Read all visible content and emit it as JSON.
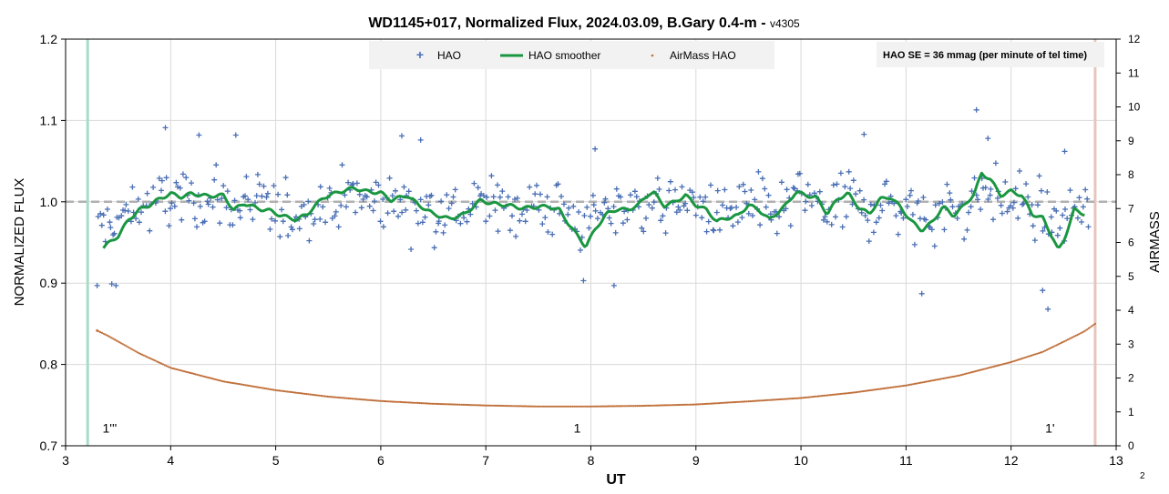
{
  "chart_data": {
    "type": "scatter",
    "title": "WD1145+017, Normalized Flux, 2024.03.09, B.Gary 0.4-m - ",
    "title_version": "v4305",
    "xlabel": "UT",
    "ylabel": "NORMALIZED FLUX",
    "y2label": "AIRMASS",
    "xlim": [
      3,
      13
    ],
    "ylim": [
      0.7,
      1.2
    ],
    "y2lim": [
      0,
      12
    ],
    "x_ticks": [
      3,
      4,
      5,
      6,
      7,
      8,
      9,
      10,
      11,
      12,
      13
    ],
    "y_ticks": [
      0.7,
      0.8,
      0.9,
      1.0,
      1.1,
      1.2
    ],
    "y_tick_labels": [
      "0.7",
      "0.8",
      "0.9",
      "1.0",
      "1.1",
      "1.2"
    ],
    "y2_ticks": [
      0,
      1,
      2,
      3,
      4,
      5,
      6,
      7,
      8,
      9,
      10,
      11,
      12
    ],
    "grid": true,
    "reference_line": {
      "y": 1.0,
      "style": "dashed",
      "color": "#b0b0b0"
    },
    "vertical_markers": [
      {
        "x": 3.21,
        "color": "#a8dcc8"
      },
      {
        "x": 12.8,
        "color": "#e8c4bc"
      }
    ],
    "annotations": [
      {
        "text": "1'''",
        "x": 3.42,
        "y": 0.712
      },
      {
        "text": "1",
        "x": 7.87,
        "y": 0.712
      },
      {
        "text": "1'",
        "x": 12.37,
        "y": 0.712
      }
    ],
    "note": "HAO SE = 36 mmag (per minute of tel time)",
    "corner_label": "2",
    "legend_position": "top-center",
    "series": [
      {
        "name": "HAO",
        "marker": "+",
        "color": "#4a6fb5",
        "x_range": [
          3.3,
          12.75
        ],
        "n_points": 520,
        "center": 0.995,
        "scatter_sd": 0.032,
        "outliers": [
          [
            3.3,
            0.897
          ],
          [
            3.44,
            0.899
          ],
          [
            3.48,
            0.897
          ],
          [
            3.95,
            1.091
          ],
          [
            4.27,
            1.082
          ],
          [
            4.62,
            1.082
          ],
          [
            6.2,
            1.081
          ],
          [
            6.38,
            1.076
          ],
          [
            8.04,
            1.065
          ],
          [
            7.93,
            0.903
          ],
          [
            8.22,
            0.897
          ],
          [
            10.6,
            1.083
          ],
          [
            11.15,
            0.887
          ],
          [
            11.67,
            1.113
          ],
          [
            12.3,
            0.891
          ],
          [
            12.35,
            0.868
          ],
          [
            11.78,
            1.078
          ],
          [
            12.51,
            1.062
          ]
        ]
      },
      {
        "name": "HAO smoother",
        "line": true,
        "color": "#1a9641",
        "x": [
          3.36,
          3.5,
          3.6,
          3.7,
          3.8,
          3.9,
          4.0,
          4.1,
          4.2,
          4.35,
          4.5,
          4.6,
          4.7,
          4.85,
          4.95,
          5.05,
          5.2,
          5.3,
          5.45,
          5.6,
          5.75,
          5.85,
          6.0,
          6.1,
          6.25,
          6.35,
          6.5,
          6.65,
          6.8,
          6.95,
          7.05,
          7.2,
          7.35,
          7.5,
          7.6,
          7.7,
          7.75,
          7.85,
          7.95,
          8.05,
          8.15,
          8.25,
          8.35,
          8.45,
          8.55,
          8.6,
          8.7,
          8.8,
          8.9,
          9.0,
          9.1,
          9.2,
          9.3,
          9.4,
          9.5,
          9.6,
          9.7,
          9.85,
          9.95,
          10.05,
          10.15,
          10.25,
          10.35,
          10.45,
          10.55,
          10.65,
          10.75,
          10.85,
          10.95,
          11.05,
          11.15,
          11.25,
          11.35,
          11.45,
          11.55,
          11.65,
          11.72,
          11.8,
          11.9,
          12.0,
          12.1,
          12.2,
          12.3,
          12.4,
          12.45,
          12.5,
          12.6,
          12.7
        ],
        "y": [
          0.944,
          0.958,
          0.978,
          0.99,
          0.996,
          1.004,
          1.01,
          1.006,
          1.01,
          1.007,
          1.008,
          0.99,
          0.998,
          0.991,
          0.989,
          0.983,
          0.978,
          0.985,
          1.005,
          1.012,
          1.017,
          1.013,
          1.011,
          1.002,
          1.008,
          0.997,
          0.985,
          0.979,
          0.985,
          1.002,
          0.998,
          0.996,
          0.992,
          0.994,
          0.994,
          0.99,
          0.98,
          0.962,
          0.945,
          0.968,
          0.985,
          0.991,
          0.99,
          0.996,
          1.01,
          1.011,
          0.995,
          1.0,
          1.008,
          0.996,
          0.99,
          0.976,
          0.98,
          0.983,
          0.996,
          0.99,
          0.978,
          0.995,
          1.012,
          1.008,
          1.005,
          0.985,
          1.004,
          1.01,
          0.993,
          0.985,
          1.003,
          1.006,
          0.993,
          0.976,
          0.965,
          0.975,
          0.994,
          0.983,
          0.995,
          1.01,
          1.035,
          1.028,
          1.008,
          1.013,
          1.008,
          0.985,
          0.98,
          0.955,
          0.94,
          0.952,
          0.99,
          0.985
        ]
      },
      {
        "name": "AirMass HAO",
        "marker": "dot",
        "color": "#c0703a",
        "axis": "right",
        "x_range": [
          3.3,
          12.8
        ],
        "x": [
          3.3,
          3.4,
          3.7,
          4.0,
          4.5,
          5.0,
          5.5,
          6.0,
          6.5,
          7.0,
          7.5,
          8.0,
          8.5,
          9.0,
          9.5,
          10.0,
          10.5,
          11.0,
          11.5,
          12.0,
          12.3,
          12.5,
          12.7,
          12.8
        ],
        "y": [
          3.4,
          3.25,
          2.73,
          2.3,
          1.9,
          1.64,
          1.45,
          1.32,
          1.24,
          1.19,
          1.16,
          1.16,
          1.18,
          1.22,
          1.31,
          1.41,
          1.57,
          1.78,
          2.07,
          2.47,
          2.77,
          3.07,
          3.38,
          3.6
        ]
      }
    ]
  }
}
